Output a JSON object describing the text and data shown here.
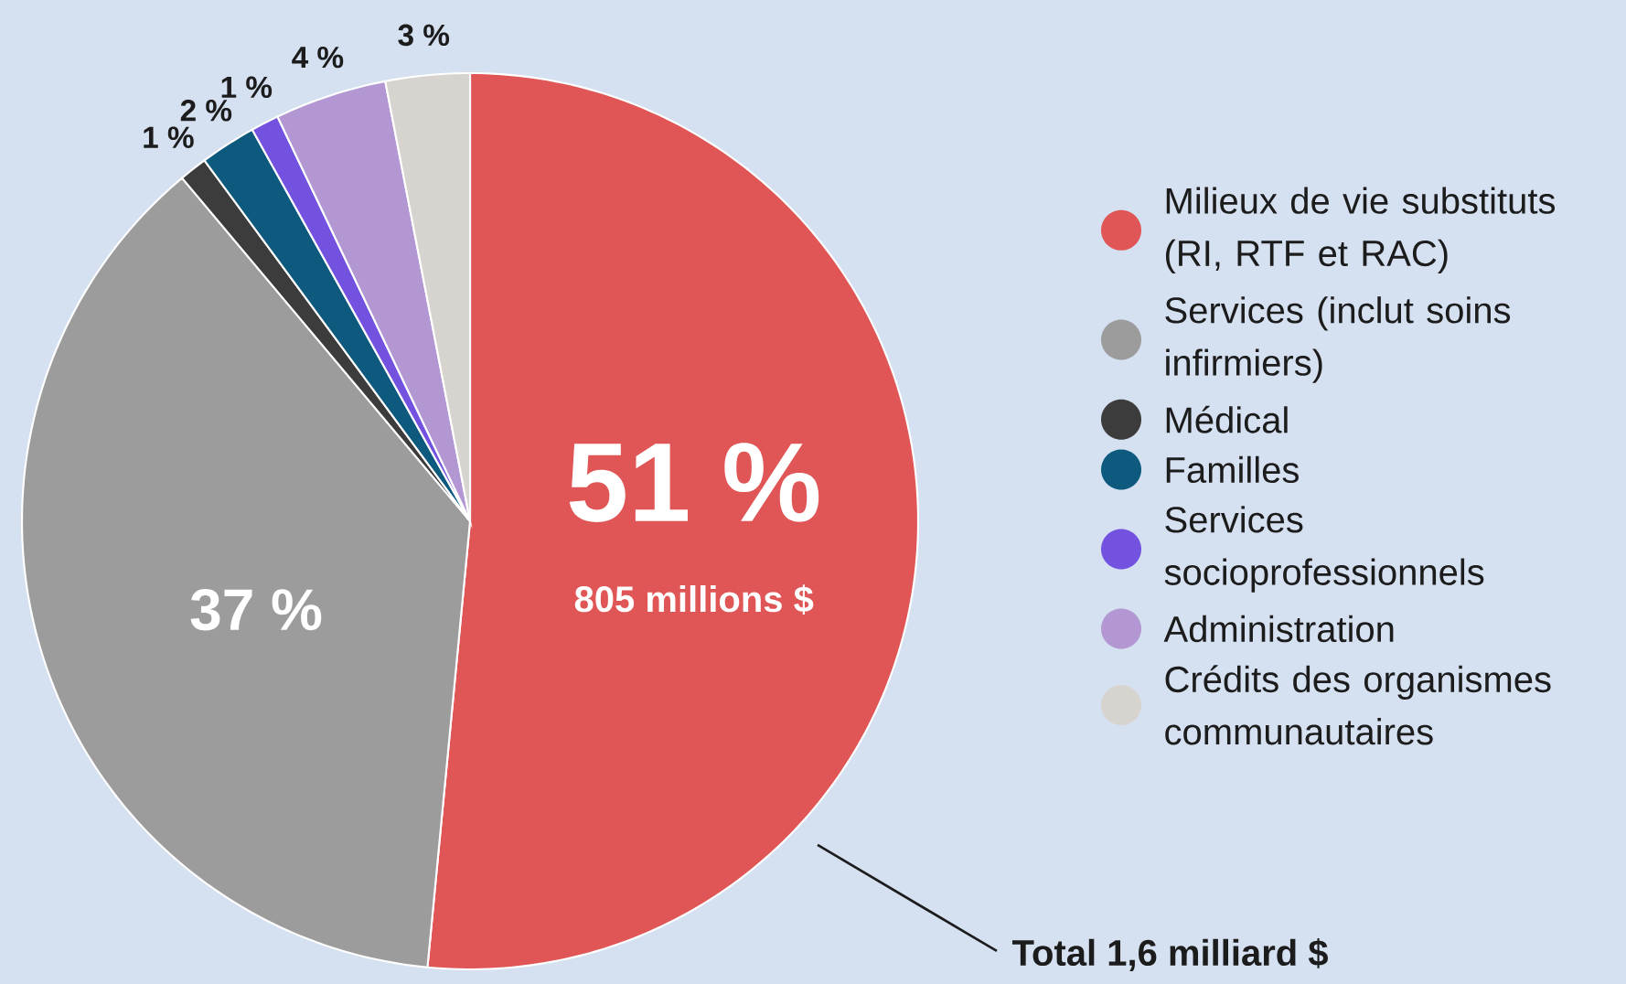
{
  "chart_data": {
    "type": "pie",
    "categories": [
      "Milieux de vie substituts (RI, RTF et RAC)",
      "Services (inclut soins infirmiers)",
      "Médical",
      "Familles",
      "Services socioprofessionnels",
      "Administration",
      "Crédits des organismes communautaires"
    ],
    "values": [
      51,
      37,
      1,
      2,
      1,
      4,
      3
    ],
    "colors": [
      "#e05555",
      "#9c9c9c",
      "#3c3c3c",
      "#0d5a7e",
      "#7452e0",
      "#b297d2",
      "#d7d4cf"
    ],
    "value_labels": [
      "51 %",
      "37 %",
      "1 %",
      "2 %",
      "1 %",
      "4 %",
      "3 %"
    ],
    "annotations": [
      "805 millions $",
      "Total 1,6 milliard $"
    ],
    "legend": "right"
  }
}
